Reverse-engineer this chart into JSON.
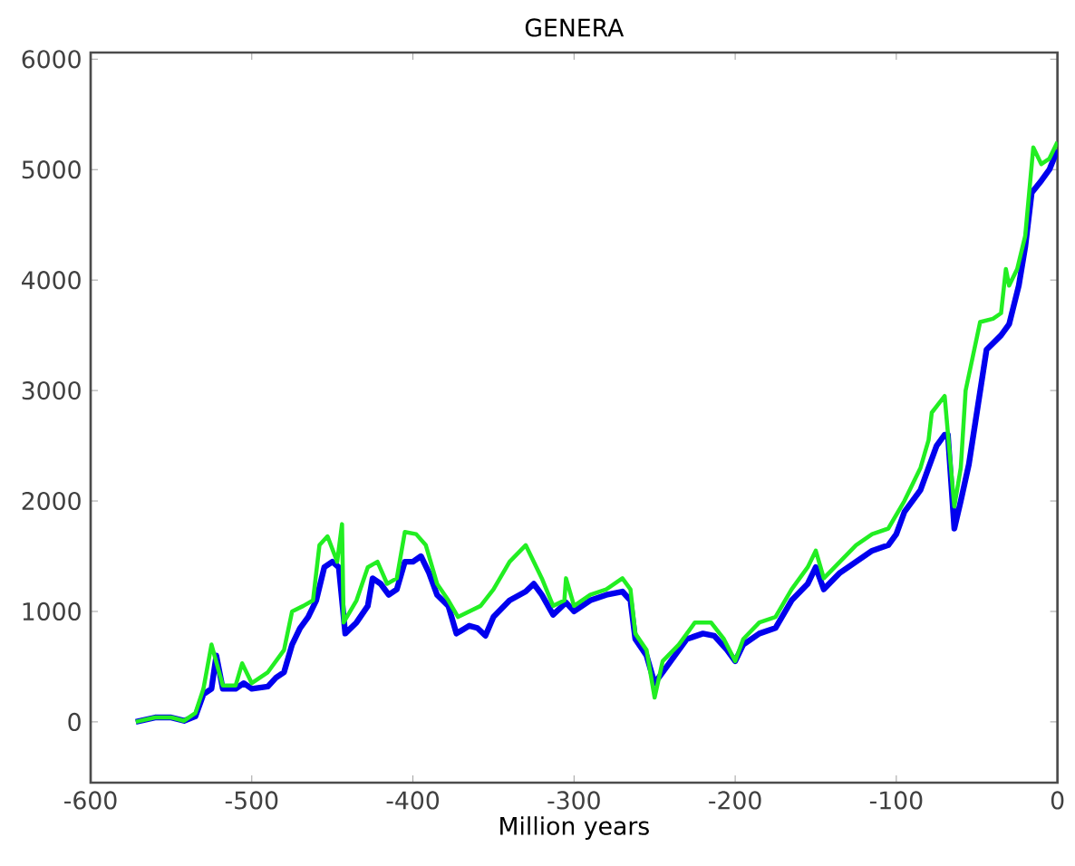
{
  "chart_data": {
    "type": "line",
    "title": "GENERA",
    "xlabel": "Million years",
    "xlim": [
      -600,
      0
    ],
    "ylim": [
      -550,
      6060
    ],
    "xticks": [
      -600,
      -500,
      -400,
      -300,
      -200,
      -100,
      0
    ],
    "yticks": [
      0,
      1000,
      2000,
      3000,
      4000,
      5000,
      6000
    ],
    "marker": "none",
    "line_style": "solid",
    "series": [
      {
        "color": "#0000ee",
        "x": [
          -572,
          -560,
          -550,
          -542,
          -535,
          -530,
          -525,
          -522,
          -518,
          -510,
          -505,
          -500,
          -490,
          -485,
          -480,
          -475,
          -470,
          -465,
          -460,
          -455,
          -450,
          -446,
          -442,
          -435,
          -428,
          -425,
          -420,
          -415,
          -410,
          -405,
          -400,
          -395,
          -390,
          -385,
          -378,
          -373,
          -365,
          -360,
          -355,
          -350,
          -340,
          -330,
          -325,
          -320,
          -313,
          -305,
          -300,
          -290,
          -280,
          -270,
          -265,
          -262,
          -255,
          -250,
          -245,
          -240,
          -230,
          -220,
          -213,
          -205,
          -200,
          -195,
          -185,
          -175,
          -165,
          -155,
          -150,
          -145,
          -135,
          -125,
          -115,
          -105,
          -100,
          -95,
          -85,
          -80,
          -75,
          -70,
          -68,
          -64,
          -60,
          -55,
          -44,
          -35,
          -30,
          -24,
          -20,
          -16,
          -10,
          -5,
          0
        ],
        "values": [
          0,
          40,
          40,
          10,
          50,
          250,
          300,
          600,
          300,
          300,
          350,
          300,
          320,
          400,
          450,
          700,
          850,
          950,
          1100,
          1400,
          1450,
          1400,
          800,
          900,
          1050,
          1300,
          1250,
          1150,
          1200,
          1450,
          1450,
          1500,
          1350,
          1150,
          1050,
          800,
          870,
          850,
          780,
          950,
          1100,
          1180,
          1250,
          1150,
          970,
          1080,
          1000,
          1100,
          1150,
          1180,
          1100,
          750,
          600,
          350,
          450,
          550,
          750,
          800,
          780,
          650,
          550,
          700,
          800,
          850,
          1100,
          1250,
          1400,
          1200,
          1350,
          1450,
          1550,
          1600,
          1700,
          1900,
          2100,
          2300,
          2500,
          2600,
          2600,
          1750,
          2000,
          2330,
          3370,
          3500,
          3600,
          3950,
          4300,
          4790,
          4900,
          5000,
          5180
        ]
      },
      {
        "color": "#22ee22",
        "x": [
          -572,
          -560,
          -550,
          -542,
          -535,
          -530,
          -525,
          -518,
          -510,
          -506,
          -500,
          -490,
          -480,
          -475,
          -468,
          -462,
          -458,
          -453,
          -447,
          -444,
          -443,
          -435,
          -428,
          -422,
          -416,
          -410,
          -405,
          -398,
          -392,
          -385,
          -378,
          -372,
          -365,
          -358,
          -350,
          -340,
          -330,
          -320,
          -313,
          -306,
          -305,
          -300,
          -290,
          -280,
          -270,
          -265,
          -262,
          -255,
          -250,
          -245,
          -235,
          -225,
          -215,
          -207,
          -200,
          -195,
          -185,
          -175,
          -165,
          -155,
          -150,
          -145,
          -135,
          -125,
          -115,
          -105,
          -95,
          -85,
          -80,
          -78,
          -70,
          -64,
          -60,
          -57,
          -48,
          -40,
          -35,
          -32,
          -30,
          -25,
          -20,
          -15,
          -10,
          -5,
          0
        ],
        "values": [
          0,
          40,
          40,
          10,
          80,
          300,
          700,
          330,
          330,
          530,
          350,
          450,
          650,
          1000,
          1050,
          1100,
          1600,
          1680,
          1450,
          1790,
          900,
          1100,
          1400,
          1450,
          1250,
          1300,
          1720,
          1700,
          1600,
          1250,
          1100,
          950,
          1000,
          1050,
          1200,
          1450,
          1600,
          1300,
          1050,
          1100,
          1300,
          1050,
          1150,
          1200,
          1300,
          1200,
          800,
          650,
          220,
          550,
          700,
          900,
          900,
          750,
          550,
          750,
          900,
          950,
          1200,
          1400,
          1550,
          1300,
          1450,
          1600,
          1700,
          1750,
          2000,
          2300,
          2550,
          2800,
          2950,
          1950,
          2300,
          3000,
          3620,
          3650,
          3700,
          4100,
          3950,
          4100,
          4400,
          5200,
          5050,
          5100,
          5250
        ]
      }
    ]
  }
}
